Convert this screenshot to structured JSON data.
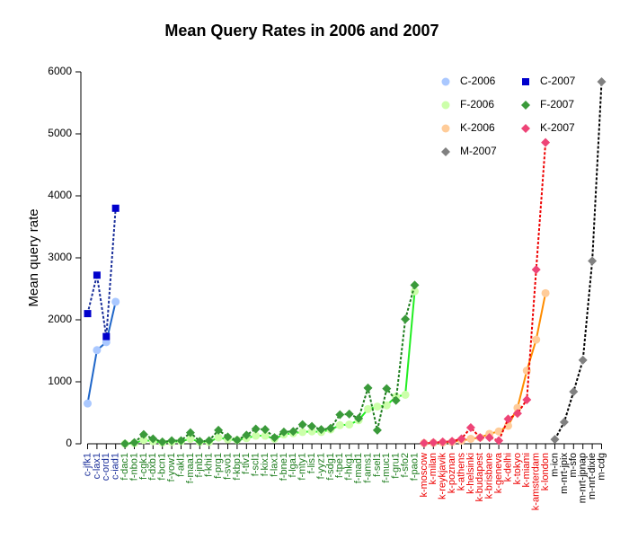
{
  "chart_data": {
    "type": "line",
    "title": "Mean Query Rates in 2006 and 2007",
    "y_label": "Mean query rate",
    "categories": [
      "c-jfk1",
      "c-lax1",
      "c-ord1",
      "c-iad1",
      "f-dac1",
      "f-nbo1",
      "f-cgk1",
      "f-dxb1",
      "f-bcn1",
      "f-yow1",
      "f-akl1",
      "f-maa1",
      "f-jnb1",
      "f-khi1",
      "f-prg1",
      "f-svo1",
      "f-kbp1",
      "f-tlv1",
      "f-scl1",
      "f-kix1",
      "f-lax1",
      "f-bne1",
      "f-lga1",
      "f-mty1",
      "f-lis1",
      "f-yyz1",
      "f-sdg1",
      "f-tpe1",
      "f-hkg1",
      "f-mad1",
      "f-ams1",
      "f-sel1",
      "f-muc1",
      "f-gru1",
      "f-sfo2",
      "f-pao1",
      "k-moscow",
      "k-milan",
      "k-reykjavik",
      "k-poznan",
      "k-athens",
      "k-helsinki",
      "k-budapest",
      "k-brisbane",
      "k-geneva",
      "k-delhi",
      "k-tokyo",
      "k-miami",
      "k-amsterdam",
      "k-london",
      "m-icn",
      "m-nrt-jpix",
      "m-sfo",
      "m-nrt-jpnap",
      "m-nrt-dixie",
      "m-cdg"
    ],
    "ylim": [
      0,
      6000
    ],
    "yticks": [
      0,
      1000,
      2000,
      3000,
      4000,
      5000,
      6000
    ],
    "legend": "top-right",
    "series": [
      {
        "name": "C-2006",
        "color": "#aac8ff",
        "line_color": "#1f66c9",
        "line_style": "solid",
        "marker": "circle",
        "values": [
          650,
          1510,
          1640,
          2290,
          null,
          null,
          null,
          null,
          null,
          null,
          null,
          null,
          null,
          null,
          null,
          null,
          null,
          null,
          null,
          null,
          null,
          null,
          null,
          null,
          null,
          null,
          null,
          null,
          null,
          null,
          null,
          null,
          null,
          null,
          null,
          null,
          null,
          null,
          null,
          null,
          null,
          null,
          null,
          null,
          null,
          null,
          null,
          null,
          null,
          null,
          null,
          null,
          null,
          null,
          null,
          null
        ]
      },
      {
        "name": "F-2006",
        "color": "#ccffaa",
        "line_color": "#22ee22",
        "line_style": "solid",
        "marker": "circle",
        "values": [
          null,
          null,
          null,
          null,
          0,
          10,
          60,
          40,
          20,
          30,
          40,
          80,
          30,
          30,
          100,
          70,
          60,
          90,
          130,
          130,
          80,
          150,
          170,
          190,
          200,
          190,
          230,
          300,
          310,
          380,
          560,
          600,
          620,
          760,
          790,
          2460,
          null,
          null,
          null,
          null,
          null,
          null,
          null,
          null,
          null,
          null,
          null,
          null,
          null,
          null,
          null,
          null,
          null,
          null,
          null,
          null
        ]
      },
      {
        "name": "K-2006",
        "color": "#ffcc99",
        "line_color": "#ff8c00",
        "line_style": "solid",
        "marker": "circle",
        "values": [
          null,
          null,
          null,
          null,
          null,
          null,
          null,
          null,
          null,
          null,
          null,
          null,
          null,
          null,
          null,
          null,
          null,
          null,
          null,
          null,
          null,
          null,
          null,
          null,
          null,
          null,
          null,
          null,
          null,
          null,
          null,
          null,
          null,
          null,
          null,
          null,
          10,
          15,
          20,
          30,
          50,
          80,
          100,
          160,
          200,
          290,
          580,
          1180,
          1680,
          2430,
          null,
          null,
          null,
          null,
          null,
          null
        ]
      },
      {
        "name": "M-2007",
        "color": "#808080",
        "line_color": "#000000",
        "line_style": "dashed",
        "marker": "diamond",
        "values": [
          null,
          null,
          null,
          null,
          null,
          null,
          null,
          null,
          null,
          null,
          null,
          null,
          null,
          null,
          null,
          null,
          null,
          null,
          null,
          null,
          null,
          null,
          null,
          null,
          null,
          null,
          null,
          null,
          null,
          null,
          null,
          null,
          null,
          null,
          null,
          null,
          null,
          null,
          null,
          null,
          null,
          null,
          null,
          null,
          null,
          null,
          null,
          null,
          null,
          null,
          70,
          350,
          840,
          1350,
          2950,
          5840
        ]
      },
      {
        "name": "C-2007",
        "color": "#0000cc",
        "line_color": "#1a2f9a",
        "line_style": "dashed",
        "marker": "square",
        "values": [
          2100,
          2720,
          1730,
          3800,
          null,
          null,
          null,
          null,
          null,
          null,
          null,
          null,
          null,
          null,
          null,
          null,
          null,
          null,
          null,
          null,
          null,
          null,
          null,
          null,
          null,
          null,
          null,
          null,
          null,
          null,
          null,
          null,
          null,
          null,
          null,
          null,
          null,
          null,
          null,
          null,
          null,
          null,
          null,
          null,
          null,
          null,
          null,
          null,
          null,
          null,
          null,
          null,
          null,
          null,
          null,
          null
        ]
      },
      {
        "name": "F-2007",
        "color": "#3a9a3a",
        "line_color": "#1e7d1e",
        "line_style": "dashed",
        "marker": "diamond",
        "values": [
          null,
          null,
          null,
          null,
          0,
          20,
          150,
          80,
          30,
          50,
          50,
          180,
          40,
          50,
          220,
          110,
          60,
          140,
          240,
          230,
          100,
          190,
          200,
          310,
          280,
          230,
          250,
          470,
          480,
          410,
          900,
          220,
          890,
          700,
          2010,
          2560,
          null,
          null,
          null,
          null,
          null,
          null,
          null,
          null,
          null,
          null,
          null,
          null,
          null,
          null,
          null,
          null,
          null,
          null,
          null,
          null
        ]
      },
      {
        "name": "K-2007",
        "color": "#ee4477",
        "line_color": "#ee0000",
        "line_style": "dashed",
        "marker": "diamond",
        "values": [
          null,
          null,
          null,
          null,
          null,
          null,
          null,
          null,
          null,
          null,
          null,
          null,
          null,
          null,
          null,
          null,
          null,
          null,
          null,
          null,
          null,
          null,
          null,
          null,
          null,
          null,
          null,
          null,
          null,
          null,
          null,
          null,
          null,
          null,
          null,
          null,
          10,
          20,
          30,
          40,
          80,
          260,
          100,
          100,
          50,
          400,
          490,
          710,
          2810,
          4860,
          null,
          null,
          null,
          null,
          null,
          null
        ]
      }
    ]
  }
}
